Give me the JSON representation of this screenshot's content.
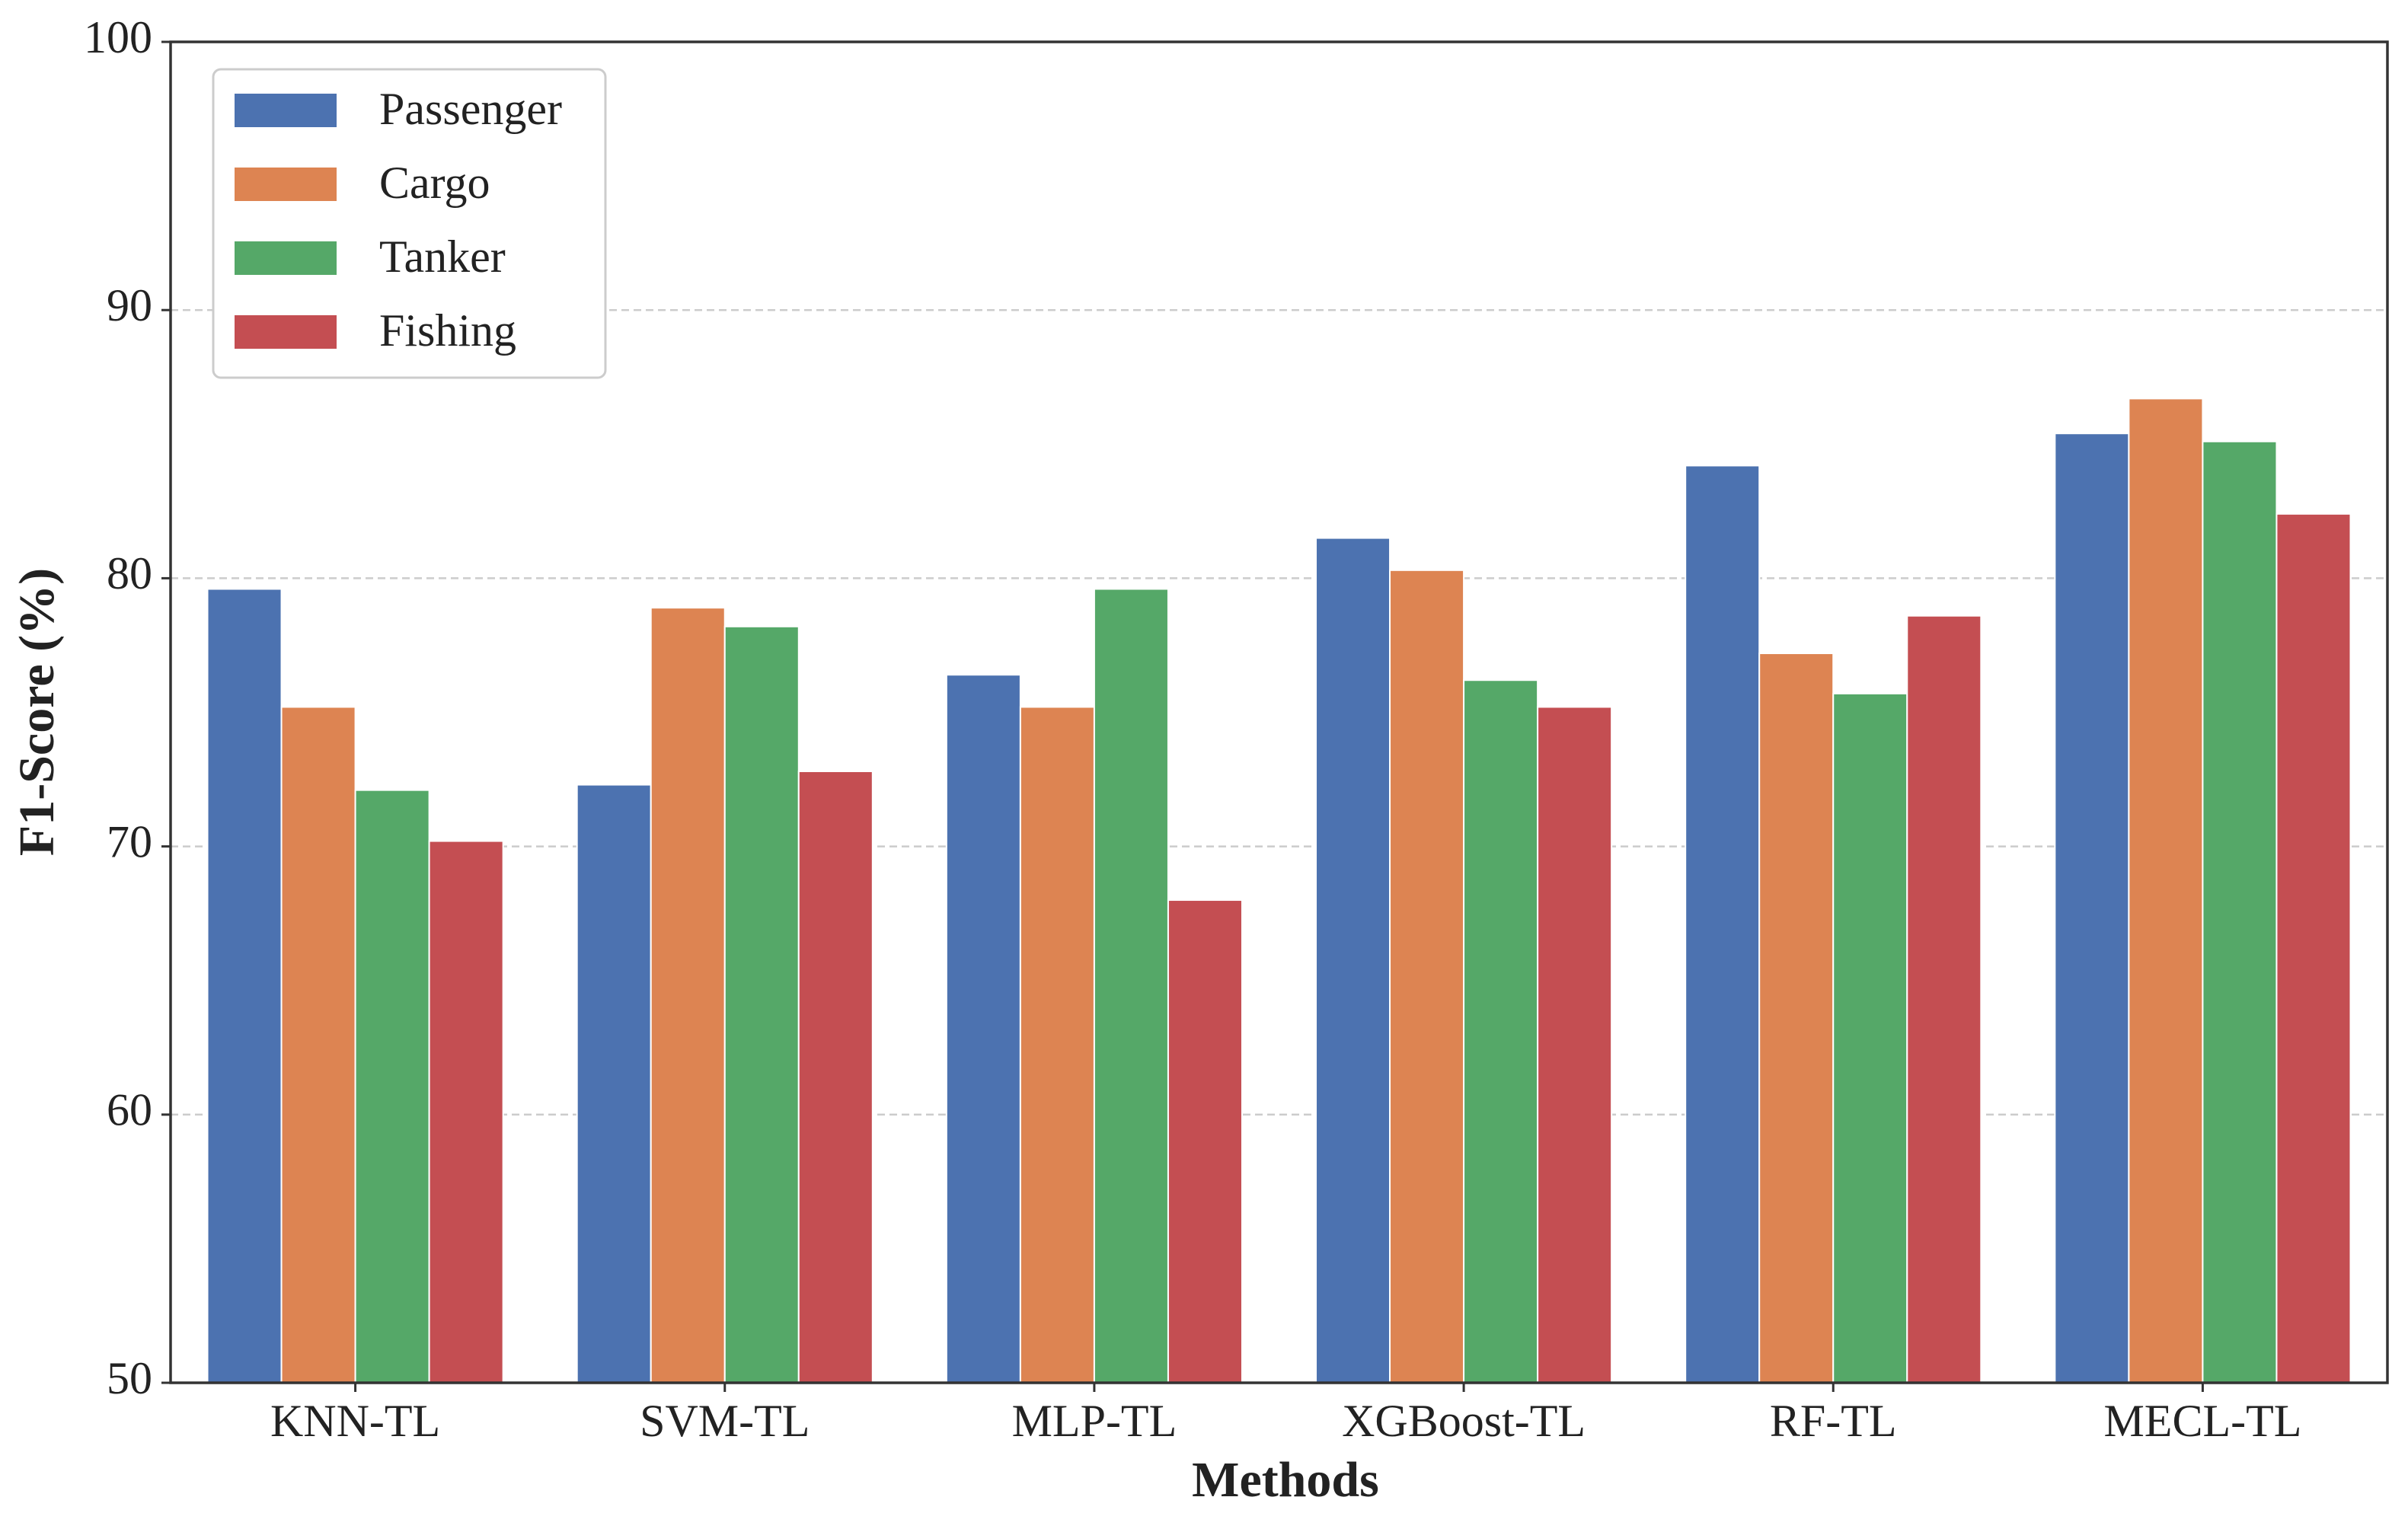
{
  "chart_data": {
    "type": "bar",
    "xlabel": "Methods",
    "ylabel": "F1-Score (%)",
    "categories": [
      "KNN-TL",
      "SVM-TL",
      "MLP-TL",
      "XGBoost-TL",
      "RF-TL",
      "MECL-TL"
    ],
    "series": [
      {
        "name": "Passenger",
        "color": "#4c72b0",
        "values": [
          79.6,
          72.3,
          76.4,
          81.5,
          84.2,
          85.4
        ]
      },
      {
        "name": "Cargo",
        "color": "#dd8452",
        "values": [
          75.2,
          78.9,
          75.2,
          80.3,
          77.2,
          86.7
        ]
      },
      {
        "name": "Tanker",
        "color": "#55a868",
        "values": [
          72.1,
          78.2,
          79.6,
          76.2,
          75.7,
          85.1
        ]
      },
      {
        "name": "Fishing",
        "color": "#c44e52",
        "values": [
          70.2,
          72.8,
          68.0,
          75.2,
          78.6,
          82.4
        ]
      }
    ],
    "ylim": [
      50,
      100
    ],
    "yticks": [
      50,
      60,
      70,
      80,
      90,
      100
    ],
    "grid": true,
    "legend": "upper left"
  }
}
